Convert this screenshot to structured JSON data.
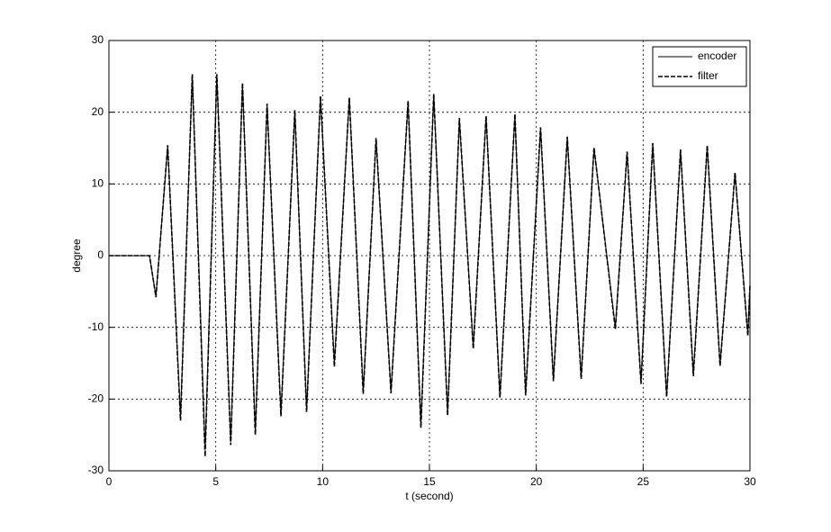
{
  "chart_data": {
    "type": "line",
    "xlabel": "t (second)",
    "ylabel": "degree",
    "x": [
      0,
      1.9,
      2.2,
      2.75,
      3.35,
      3.9,
      4.5,
      5.05,
      5.7,
      6.25,
      6.85,
      7.4,
      8.05,
      8.7,
      9.25,
      9.9,
      10.55,
      11.25,
      11.9,
      12.5,
      13.2,
      14,
      14.6,
      15.2,
      15.85,
      16.4,
      17.05,
      17.65,
      18.3,
      19,
      19.5,
      20.2,
      20.8,
      21.45,
      22.1,
      22.7,
      23.7,
      24.25,
      24.9,
      25.45,
      26.1,
      26.75,
      27.35,
      28,
      28.6,
      29.3,
      29.9,
      30
    ],
    "series": [
      {
        "name": "encoder",
        "color": "#000000",
        "dash": "solid",
        "values": [
          0,
          0,
          -5.7,
          15.3,
          -22.5,
          25.2,
          -27,
          25.2,
          -26,
          24,
          -24.5,
          21,
          -22,
          20,
          -21.5,
          22.2,
          -15,
          22,
          -19,
          16.2,
          -19,
          21.5,
          -23.5,
          22.5,
          -22,
          19,
          -12.7,
          19.4,
          -19.6,
          19.6,
          -19.3,
          17.7,
          -17.3,
          16.5,
          -17,
          15,
          -10,
          14.4,
          -17.6,
          15.6,
          -19.5,
          14.6,
          -16.5,
          15.2,
          -15.2,
          11.5,
          -11,
          -4
        ]
      },
      {
        "name": "filter",
        "color": "#000000",
        "dash": "dashed",
        "values": [
          0,
          0,
          -5.8,
          15.4,
          -23,
          25.3,
          -28,
          25.3,
          -26.4,
          24.1,
          -25,
          21.2,
          -22.4,
          20.3,
          -21.8,
          22.3,
          -15.5,
          22.1,
          -19.3,
          16.4,
          -19.2,
          21.6,
          -24,
          22.6,
          -22.3,
          19.2,
          -13,
          19.5,
          -19.8,
          19.8,
          -19.5,
          17.9,
          -17.5,
          16.6,
          -17.2,
          15.1,
          -10.3,
          14.5,
          -17.9,
          15.7,
          -19.7,
          14.8,
          -16.8,
          15.4,
          -15.4,
          11.6,
          -11.2,
          -4.2
        ]
      }
    ],
    "xlim": [
      0,
      30
    ],
    "xticks": [
      0,
      5,
      10,
      15,
      20,
      25,
      30
    ],
    "ylim": [
      -30,
      30
    ],
    "yticks": [
      -30,
      -20,
      -10,
      0,
      10,
      20,
      30
    ],
    "grid": true,
    "legend": "upper-right"
  }
}
